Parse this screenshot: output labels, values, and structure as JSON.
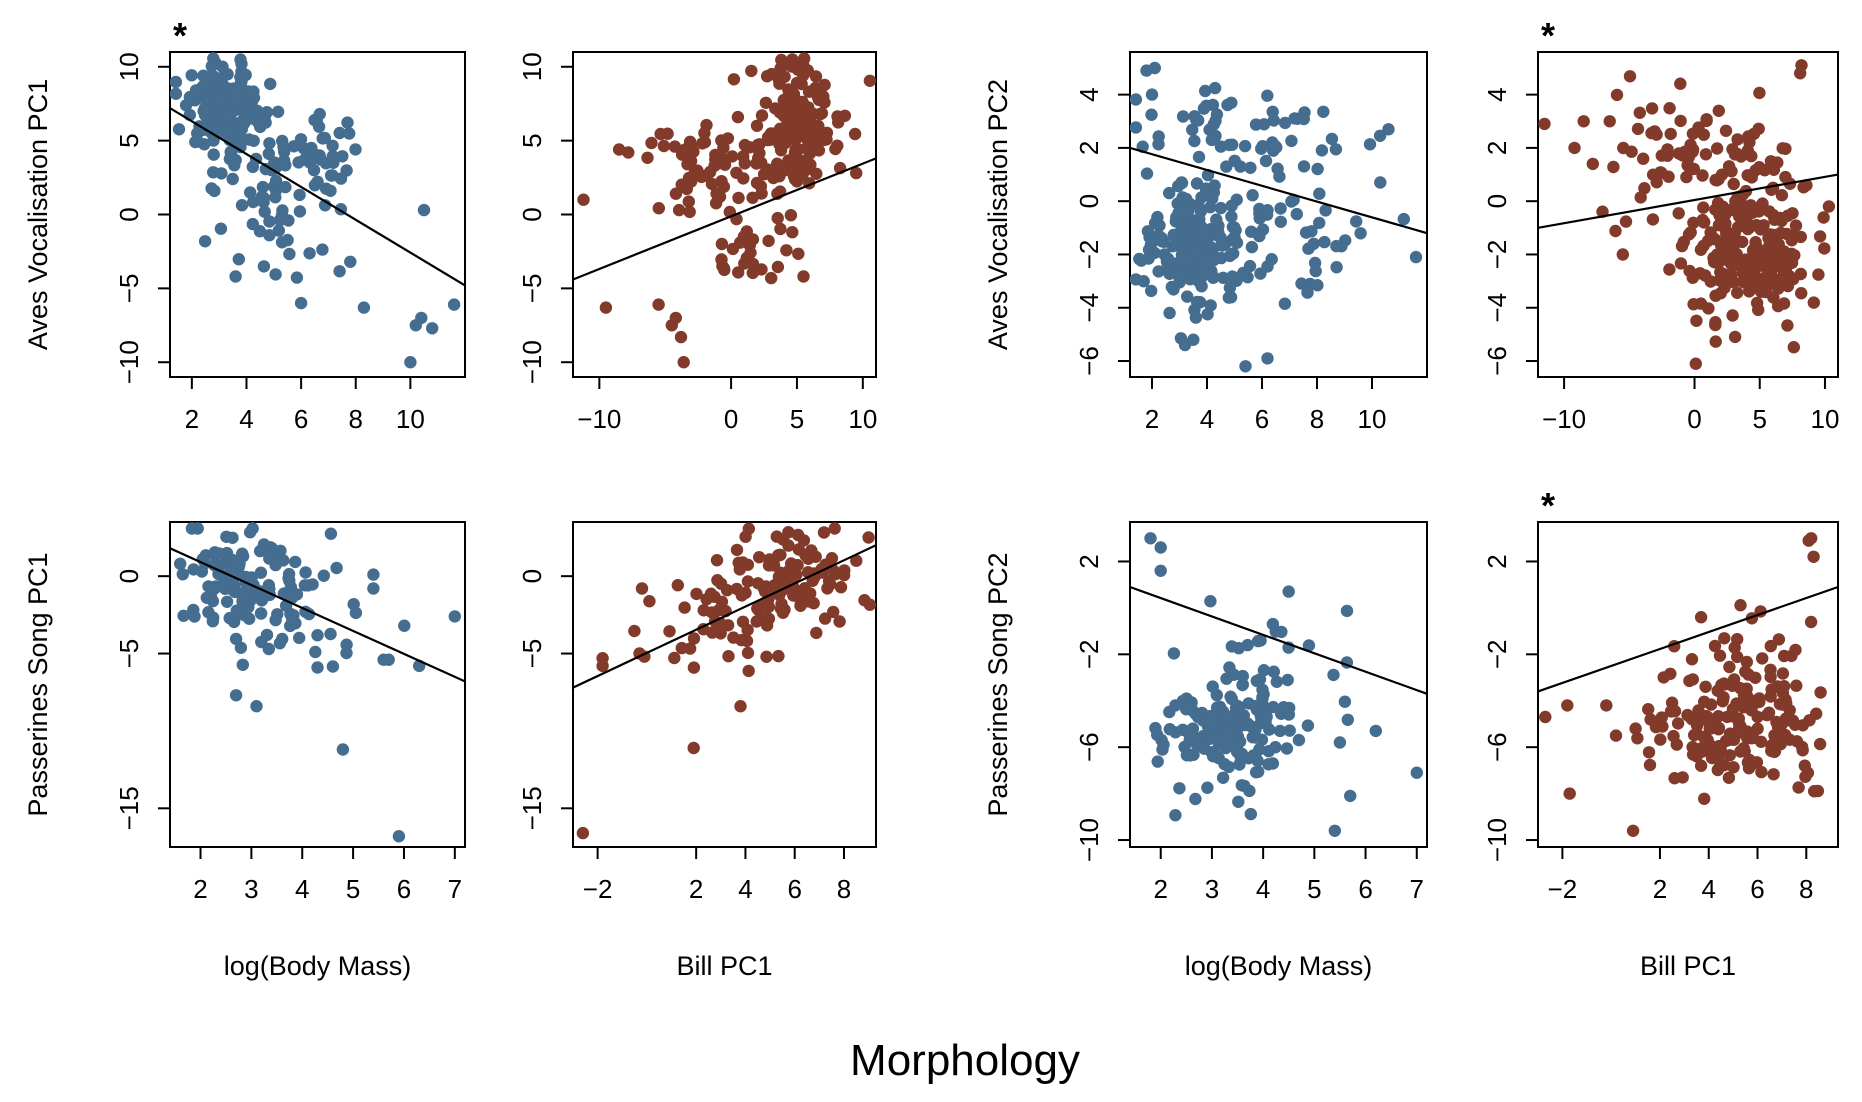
{
  "figure": {
    "title": "Morphology",
    "significance_symbol": "*",
    "colors": {
      "body_mass": "#456d8f",
      "bill": "#823a2a",
      "line": "#000000"
    }
  },
  "chart_data": [
    {
      "type": "scatter",
      "panel": "aves-pc1-mass",
      "xlabel": "",
      "ylabel": "Aves Vocalisation PC1",
      "xlim": [
        1.2,
        12
      ],
      "ylim": [
        -11,
        11
      ],
      "xticks": [
        2,
        4,
        6,
        8,
        10
      ],
      "yticks": [
        -10,
        -5,
        0,
        5,
        10
      ],
      "color": "#456d8f",
      "significant": true,
      "regression": {
        "x": [
          1.2,
          12
        ],
        "y": [
          7.2,
          -4.8
        ]
      },
      "clusters": [
        {
          "mean": [
            3.2,
            7.3
          ],
          "sd": [
            0.75,
            1.4
          ],
          "n": 170
        },
        {
          "mean": [
            5.8,
            3.6
          ],
          "sd": [
            1.3,
            2.0
          ],
          "n": 75
        },
        {
          "mean": [
            4.8,
            -1.2
          ],
          "sd": [
            1.3,
            1.8
          ],
          "n": 25
        }
      ],
      "points": [
        [
          10.0,
          -10.0
        ],
        [
          10.2,
          -7.5
        ],
        [
          10.4,
          -7.0
        ],
        [
          10.8,
          -7.7
        ],
        [
          11.6,
          -6.1
        ],
        [
          10.5,
          0.3
        ],
        [
          8.3,
          -6.3
        ],
        [
          6.0,
          -6.0
        ],
        [
          3.6,
          -4.2
        ],
        [
          7.8,
          -3.2
        ]
      ]
    },
    {
      "type": "scatter",
      "panel": "aves-pc1-bill",
      "xlabel": "",
      "ylabel": "",
      "xlim": [
        -12,
        11
      ],
      "ylim": [
        -11,
        11
      ],
      "xticks": [
        -10,
        0,
        5,
        10
      ],
      "yticks": [
        -10,
        -5,
        0,
        5,
        10
      ],
      "color": "#823a2a",
      "significant": false,
      "regression": {
        "x": [
          -12,
          11
        ],
        "y": [
          -4.4,
          3.8
        ]
      },
      "clusters": [
        {
          "mean": [
            5.3,
            6.5
          ],
          "sd": [
            1.8,
            1.9
          ],
          "n": 150
        },
        {
          "mean": [
            -1.0,
            3.2
          ],
          "sd": [
            2.8,
            1.7
          ],
          "n": 75
        },
        {
          "mean": [
            1.5,
            -2.5
          ],
          "sd": [
            2.0,
            1.7
          ],
          "n": 30
        }
      ],
      "points": [
        [
          -11.2,
          1.0
        ],
        [
          -9.5,
          -6.3
        ],
        [
          -5.5,
          -6.1
        ],
        [
          -4.5,
          -7.5
        ],
        [
          -4.2,
          -7.0
        ],
        [
          -3.8,
          -8.3
        ],
        [
          -3.6,
          -10.0
        ],
        [
          -7.8,
          4.2
        ],
        [
          -8.5,
          4.4
        ],
        [
          9.5,
          2.8
        ],
        [
          5.5,
          -4.2
        ]
      ]
    },
    {
      "type": "scatter",
      "panel": "aves-pc2-mass",
      "xlabel": "",
      "ylabel": "Aves Vocalisation PC2",
      "xlim": [
        1.2,
        12
      ],
      "ylim": [
        -6.6,
        5.6
      ],
      "xticks": [
        2,
        4,
        6,
        8,
        10
      ],
      "yticks": [
        -6,
        -4,
        -2,
        0,
        2,
        4
      ],
      "color": "#456d8f",
      "significant": false,
      "regression": {
        "x": [
          1.2,
          12
        ],
        "y": [
          2.0,
          -1.2
        ]
      },
      "clusters": [
        {
          "mean": [
            3.4,
            -1.8
          ],
          "sd": [
            0.8,
            1.2
          ],
          "n": 150
        },
        {
          "mean": [
            5.5,
            2.6
          ],
          "sd": [
            1.9,
            0.9
          ],
          "n": 60
        },
        {
          "mean": [
            6.2,
            -1.0
          ],
          "sd": [
            1.7,
            1.4
          ],
          "n": 65
        }
      ],
      "points": [
        [
          1.8,
          4.9
        ],
        [
          2.1,
          5.0
        ],
        [
          2.0,
          4.0
        ],
        [
          5.4,
          -6.2
        ],
        [
          6.2,
          -5.9
        ],
        [
          10.6,
          2.7
        ],
        [
          11.6,
          -2.1
        ],
        [
          10.3,
          0.7
        ],
        [
          3.2,
          -5.4
        ],
        [
          3.5,
          -5.2
        ]
      ]
    },
    {
      "type": "scatter",
      "panel": "aves-pc2-bill",
      "xlabel": "",
      "ylabel": "",
      "xlim": [
        -12,
        11
      ],
      "ylim": [
        -6.6,
        5.6
      ],
      "xticks": [
        -10,
        0,
        5,
        10
      ],
      "yticks": [
        -6,
        -4,
        -2,
        0,
        2,
        4
      ],
      "color": "#823a2a",
      "significant": true,
      "regression": {
        "x": [
          -12,
          11
        ],
        "y": [
          -1.0,
          1.0
        ]
      },
      "clusters": [
        {
          "mean": [
            4.5,
            -1.8
          ],
          "sd": [
            2.2,
            1.3
          ],
          "n": 150
        },
        {
          "mean": [
            0.0,
            1.8
          ],
          "sd": [
            3.0,
            1.3
          ],
          "n": 75
        },
        {
          "mean": [
            3.5,
            -1.0
          ],
          "sd": [
            2.8,
            2.0
          ],
          "n": 60
        }
      ],
      "points": [
        [
          -11.5,
          2.9
        ],
        [
          -9.2,
          2.0
        ],
        [
          -8.5,
          3.0
        ],
        [
          -6.5,
          3.0
        ],
        [
          8.2,
          5.1
        ],
        [
          8.1,
          4.8
        ],
        [
          0.1,
          -6.1
        ],
        [
          -5.5,
          -2.0
        ],
        [
          -7.8,
          1.4
        ],
        [
          10.3,
          -0.2
        ]
      ]
    },
    {
      "type": "scatter",
      "panel": "passerines-pc1-mass",
      "xlabel": "log(Body Mass)",
      "ylabel": "Passerines Song PC1",
      "xlim": [
        1.4,
        7.2
      ],
      "ylim": [
        -17.5,
        3.5
      ],
      "xticks": [
        2,
        3,
        4,
        5,
        6,
        7
      ],
      "yticks": [
        -15,
        -5,
        0
      ],
      "color": "#456d8f",
      "significant": false,
      "regression": {
        "x": [
          1.4,
          7.2
        ],
        "y": [
          1.8,
          -6.8
        ]
      },
      "clusters": [
        {
          "mean": [
            2.9,
            -0.4
          ],
          "sd": [
            0.6,
            1.6
          ],
          "n": 115
        },
        {
          "mean": [
            3.7,
            -3.6
          ],
          "sd": [
            0.8,
            1.6
          ],
          "n": 30
        }
      ],
      "points": [
        [
          5.9,
          -16.8
        ],
        [
          4.8,
          -11.2
        ],
        [
          3.1,
          -8.4
        ],
        [
          2.7,
          -7.7
        ],
        [
          7.0,
          -2.6
        ],
        [
          6.3,
          -5.8
        ],
        [
          5.6,
          -5.4
        ],
        [
          5.7,
          -5.4
        ],
        [
          5.4,
          0.1
        ],
        [
          5.4,
          -0.8
        ],
        [
          4.3,
          -5.9
        ],
        [
          1.6,
          0.8
        ]
      ]
    },
    {
      "type": "scatter",
      "panel": "passerines-pc1-bill",
      "xlabel": "Bill PC1",
      "ylabel": "",
      "xlim": [
        -3,
        9.3
      ],
      "ylim": [
        -17.5,
        3.5
      ],
      "xticks": [
        -2,
        2,
        4,
        6,
        8
      ],
      "yticks": [
        -15,
        -5,
        0
      ],
      "color": "#823a2a",
      "significant": false,
      "regression": {
        "x": [
          -3,
          9.3
        ],
        "y": [
          -7.2,
          2.0
        ]
      },
      "clusters": [
        {
          "mean": [
            5.8,
            -0.3
          ],
          "sd": [
            1.3,
            1.6
          ],
          "n": 100
        },
        {
          "mean": [
            3.3,
            -2.7
          ],
          "sd": [
            1.3,
            1.8
          ],
          "n": 45
        }
      ],
      "points": [
        [
          -2.6,
          -16.6
        ],
        [
          1.9,
          -11.1
        ],
        [
          3.8,
          -8.4
        ],
        [
          -1.8,
          -5.3
        ],
        [
          -1.8,
          -5.8
        ],
        [
          -0.3,
          -5.0
        ],
        [
          -0.1,
          -5.2
        ],
        [
          -0.2,
          -0.8
        ],
        [
          9.0,
          2.5
        ],
        [
          8.5,
          1.0
        ]
      ]
    },
    {
      "type": "scatter",
      "panel": "passerines-pc2-mass",
      "xlabel": "log(Body Mass)",
      "ylabel": "Passerines Song PC2",
      "xlim": [
        1.4,
        7.2
      ],
      "ylim": [
        -10.3,
        3.7
      ],
      "xticks": [
        2,
        3,
        4,
        5,
        6,
        7
      ],
      "yticks": [
        -10,
        -6,
        -2,
        2
      ],
      "color": "#456d8f",
      "significant": false,
      "regression": {
        "x": [
          1.4,
          7.2
        ],
        "y": [
          0.9,
          -3.7
        ]
      },
      "clusters": [
        {
          "mean": [
            3.3,
            -5.3
          ],
          "sd": [
            0.65,
            1.25
          ],
          "n": 150
        },
        {
          "mean": [
            4.3,
            -2.2
          ],
          "sd": [
            1.0,
            1.6
          ],
          "n": 20
        }
      ],
      "points": [
        [
          1.8,
          3.0
        ],
        [
          2.0,
          2.6
        ],
        [
          2.0,
          1.6
        ],
        [
          5.4,
          -9.6
        ],
        [
          5.7,
          -8.1
        ],
        [
          7.0,
          -7.1
        ],
        [
          6.2,
          -5.3
        ],
        [
          4.5,
          0.7
        ],
        [
          5.5,
          -5.8
        ]
      ]
    },
    {
      "type": "scatter",
      "panel": "passerines-pc2-bill",
      "xlabel": "Bill PC1",
      "ylabel": "",
      "xlim": [
        -3,
        9.3
      ],
      "ylim": [
        -10.3,
        3.7
      ],
      "xticks": [
        -2,
        2,
        4,
        6,
        8
      ],
      "yticks": [
        -10,
        -6,
        -2,
        2
      ],
      "color": "#823a2a",
      "significant": true,
      "regression": {
        "x": [
          -3,
          9.3
        ],
        "y": [
          -3.6,
          0.9
        ]
      },
      "clusters": [
        {
          "mean": [
            5.0,
            -5.0
          ],
          "sd": [
            1.7,
            1.3
          ],
          "n": 160
        },
        {
          "mean": [
            5.5,
            -2.0
          ],
          "sd": [
            1.8,
            1.8
          ],
          "n": 35
        }
      ],
      "points": [
        [
          8.1,
          2.9
        ],
        [
          8.2,
          3.0
        ],
        [
          8.3,
          2.2
        ],
        [
          -2.7,
          -4.7
        ],
        [
          -1.8,
          -4.2
        ],
        [
          -1.7,
          -8.0
        ],
        [
          0.9,
          -9.6
        ],
        [
          -0.2,
          -4.2
        ],
        [
          1.0,
          -5.2
        ],
        [
          0.2,
          -5.5
        ]
      ]
    }
  ]
}
